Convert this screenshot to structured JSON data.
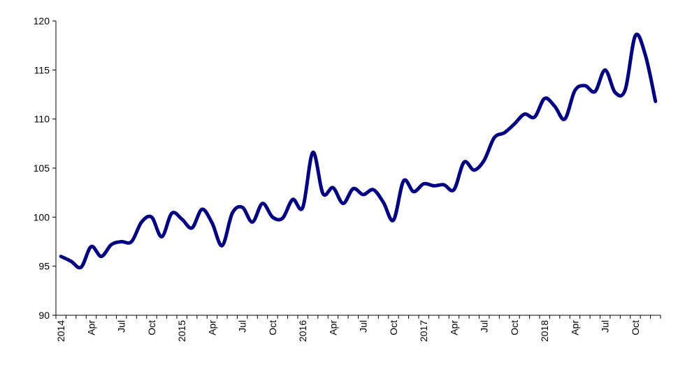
{
  "chart_data": {
    "type": "line",
    "title": "",
    "xlabel": "",
    "ylabel": "",
    "ylim": [
      90,
      120
    ],
    "yticks": [
      90,
      95,
      100,
      105,
      110,
      115,
      120
    ],
    "grid": false,
    "legend": "none",
    "line_color": "#000080",
    "xtick_labels": [
      "2014",
      "Apr",
      "Jul",
      "Oct",
      "2015",
      "Apr",
      "Jul",
      "Oct",
      "2016",
      "Apr",
      "Jul",
      "Oct",
      "2017",
      "Apr",
      "Jul",
      "Oct",
      "2018",
      "Apr",
      "Jul",
      "Oct"
    ],
    "x": [
      "2014-01",
      "2014-02",
      "2014-03",
      "2014-04",
      "2014-05",
      "2014-06",
      "2014-07",
      "2014-08",
      "2014-09",
      "2014-10",
      "2014-11",
      "2014-12",
      "2015-01",
      "2015-02",
      "2015-03",
      "2015-04",
      "2015-05",
      "2015-06",
      "2015-07",
      "2015-08",
      "2015-09",
      "2015-10",
      "2015-11",
      "2015-12",
      "2016-01",
      "2016-02",
      "2016-03",
      "2016-04",
      "2016-05",
      "2016-06",
      "2016-07",
      "2016-08",
      "2016-09",
      "2016-10",
      "2016-11",
      "2016-12",
      "2017-01",
      "2017-02",
      "2017-03",
      "2017-04",
      "2017-05",
      "2017-06",
      "2017-07",
      "2017-08",
      "2017-09",
      "2017-10",
      "2017-11",
      "2017-12",
      "2018-01",
      "2018-02",
      "2018-03",
      "2018-04",
      "2018-05",
      "2018-06",
      "2018-07",
      "2018-08",
      "2018-09",
      "2018-10",
      "2018-11",
      "2018-12"
    ],
    "series": [
      {
        "values": [
          96.0,
          95.5,
          94.9,
          97.0,
          96.0,
          97.2,
          97.5,
          97.5,
          99.5,
          100.0,
          98.0,
          100.4,
          99.8,
          98.9,
          100.8,
          99.4,
          97.1,
          100.4,
          101.0,
          99.5,
          101.4,
          100.0,
          99.9,
          101.8,
          101.0,
          106.6,
          102.4,
          103.0,
          101.4,
          102.9,
          102.3,
          102.8,
          101.5,
          99.7,
          103.7,
          102.6,
          103.4,
          103.2,
          103.3,
          102.8,
          105.6,
          104.8,
          105.8,
          108.1,
          108.6,
          109.5,
          110.5,
          110.2,
          112.1,
          111.3,
          110.0,
          112.9,
          113.4,
          112.8,
          115.0,
          112.7,
          113.0,
          118.5,
          116.5,
          111.8
        ]
      }
    ]
  }
}
